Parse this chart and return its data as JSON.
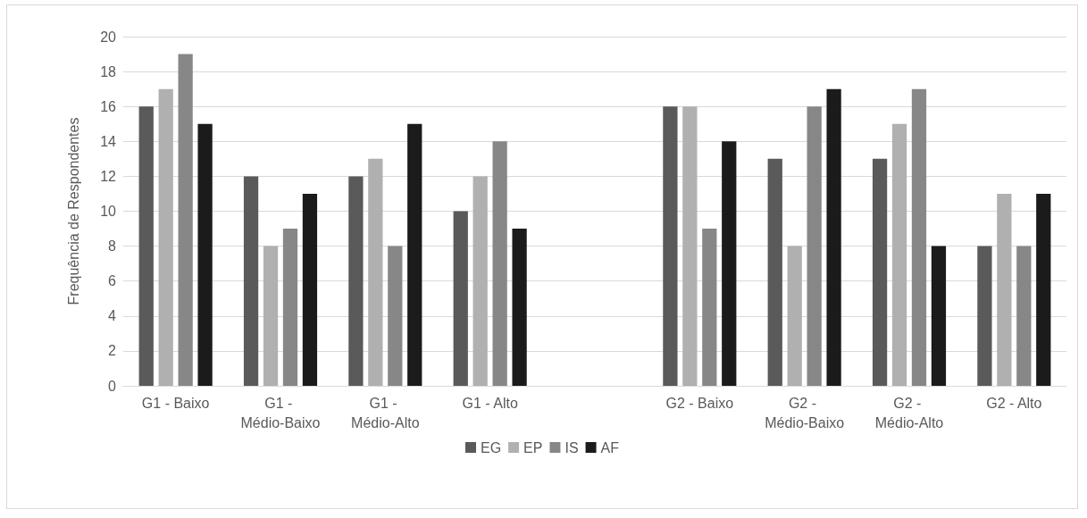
{
  "chart_data": {
    "type": "bar",
    "ylabel": "Frequência de Respondentes",
    "categories": [
      "G1 - Baixo",
      "G1 - Médio-Baixo",
      "G1 - Médio-Alto",
      "G1 - Alto",
      null,
      "G2 - Baixo",
      "G2 - Médio-Baixo",
      "G2 - Médio-Alto",
      "G2 - Alto"
    ],
    "series": [
      {
        "name": "EG",
        "color": "#5a5a5a",
        "values": [
          16,
          12,
          12,
          10,
          null,
          16,
          13,
          13,
          8
        ]
      },
      {
        "name": "EP",
        "color": "#b0b0b0",
        "values": [
          17,
          8,
          13,
          12,
          null,
          16,
          8,
          15,
          11
        ]
      },
      {
        "name": "IS",
        "color": "#878787",
        "values": [
          19,
          9,
          8,
          14,
          null,
          9,
          16,
          17,
          8
        ]
      },
      {
        "name": "AF",
        "color": "#1b1b1b",
        "values": [
          15,
          11,
          15,
          9,
          null,
          14,
          17,
          8,
          11
        ]
      }
    ],
    "ylim": [
      0,
      20
    ],
    "yticks": [
      0,
      2,
      4,
      6,
      8,
      10,
      12,
      14,
      16,
      18,
      20
    ],
    "grid": "y",
    "legend": "bottom"
  }
}
